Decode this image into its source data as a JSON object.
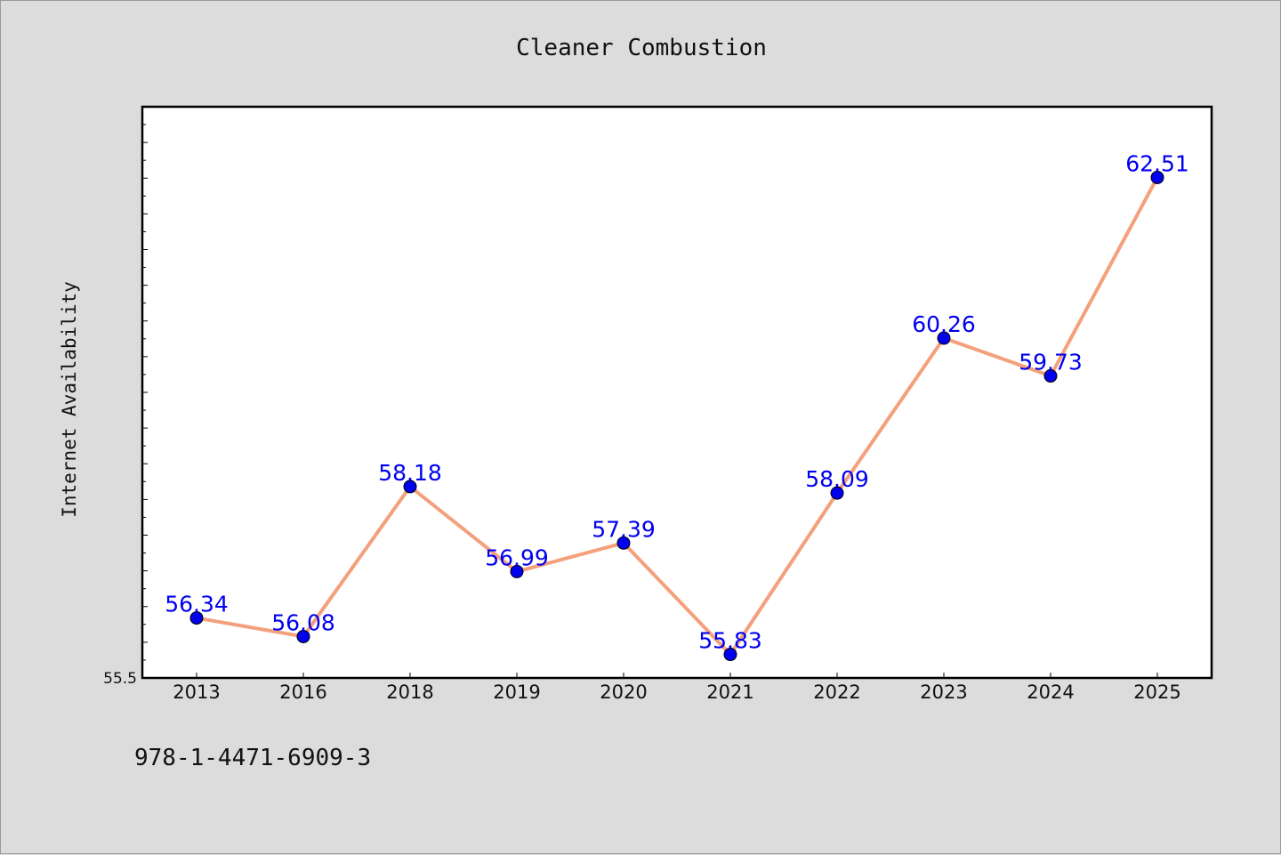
{
  "chart_data": {
    "type": "line",
    "title": "Cleaner Combustion",
    "xlabel": "",
    "ylabel": "Internet Availability",
    "categories": [
      "2013",
      "2016",
      "2018",
      "2019",
      "2020",
      "2021",
      "2022",
      "2023",
      "2024",
      "2025"
    ],
    "series": [
      {
        "values": [
          56.34,
          56.08,
          58.18,
          56.99,
          57.39,
          55.83,
          58.09,
          60.26,
          59.73,
          62.51
        ],
        "data_labels": [
          "56.34",
          "56.08",
          "58.18",
          "56.99",
          "57.39",
          "55.83",
          "58.09",
          "60.26",
          "59.73",
          "62.51"
        ]
      }
    ],
    "ylim": [
      55.5,
      63.5
    ],
    "y_tick_labels": [
      "55.5"
    ],
    "grid": false,
    "line_color": "#f4a07c",
    "marker_color": "#0000ee",
    "label_color": "#0000ee"
  },
  "footnote": "978-1-4471-6909-3"
}
